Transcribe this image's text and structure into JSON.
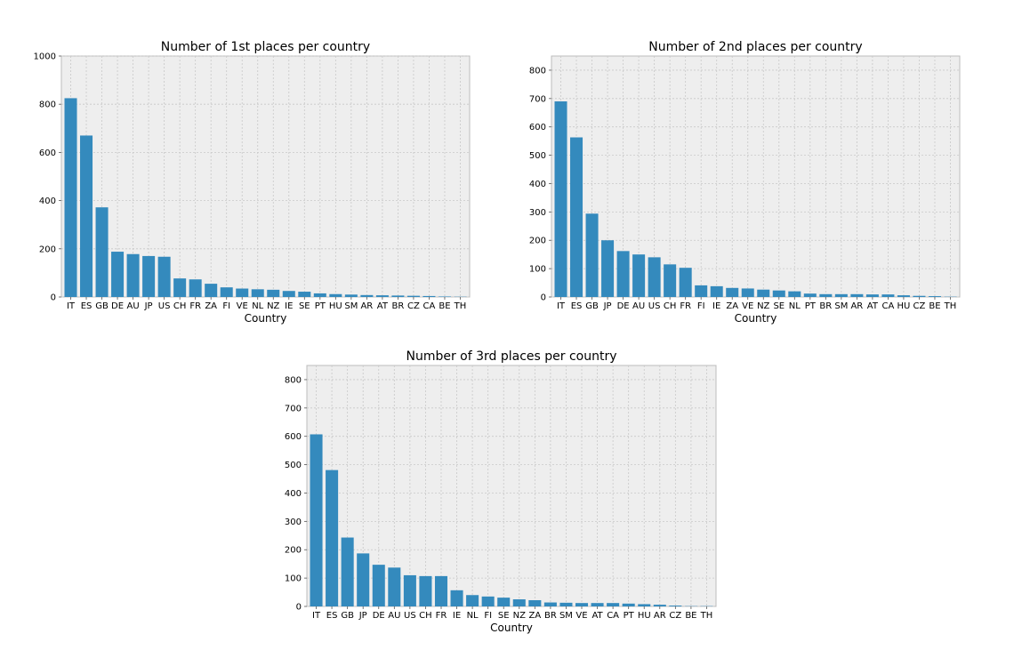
{
  "chart_data": [
    {
      "type": "bar",
      "title": "Number of 1st places per country",
      "xlabel": "Country",
      "ylabel": "",
      "ylim": [
        0,
        1000
      ],
      "yticks": [
        0,
        200,
        400,
        600,
        800,
        1000
      ],
      "grid": true,
      "categories": [
        "IT",
        "ES",
        "GB",
        "DE",
        "AU",
        "JP",
        "US",
        "CH",
        "FR",
        "ZA",
        "FI",
        "VE",
        "NL",
        "NZ",
        "IE",
        "SE",
        "PT",
        "HU",
        "SM",
        "AR",
        "AT",
        "BR",
        "CZ",
        "CA",
        "BE",
        "TH"
      ],
      "values": [
        825,
        670,
        372,
        188,
        178,
        170,
        167,
        77,
        73,
        55,
        40,
        35,
        32,
        30,
        25,
        22,
        15,
        12,
        10,
        8,
        7,
        6,
        5,
        4,
        2,
        1
      ],
      "color": "#348abd"
    },
    {
      "type": "bar",
      "title": "Number of 2nd places per country",
      "xlabel": "Country",
      "ylabel": "",
      "ylim": [
        0,
        850
      ],
      "yticks": [
        0,
        100,
        200,
        300,
        400,
        500,
        600,
        700,
        800
      ],
      "grid": true,
      "categories": [
        "IT",
        "ES",
        "GB",
        "JP",
        "DE",
        "AU",
        "US",
        "CH",
        "FR",
        "FI",
        "IE",
        "ZA",
        "VE",
        "NZ",
        "SE",
        "NL",
        "PT",
        "BR",
        "SM",
        "AR",
        "AT",
        "CA",
        "HU",
        "CZ",
        "BE",
        "TH"
      ],
      "values": [
        690,
        563,
        294,
        200,
        162,
        150,
        140,
        115,
        103,
        41,
        38,
        32,
        30,
        26,
        23,
        20,
        12,
        10,
        10,
        10,
        9,
        9,
        6,
        4,
        3,
        1
      ],
      "color": "#348abd"
    },
    {
      "type": "bar",
      "title": "Number of 3rd places per country",
      "xlabel": "Country",
      "ylabel": "",
      "ylim": [
        0,
        850
      ],
      "yticks": [
        0,
        100,
        200,
        300,
        400,
        500,
        600,
        700,
        800
      ],
      "grid": true,
      "categories": [
        "IT",
        "ES",
        "GB",
        "JP",
        "DE",
        "AU",
        "US",
        "CH",
        "FR",
        "IE",
        "NL",
        "FI",
        "SE",
        "NZ",
        "ZA",
        "BR",
        "SM",
        "VE",
        "AT",
        "CA",
        "PT",
        "HU",
        "AR",
        "CZ",
        "BE",
        "TH"
      ],
      "values": [
        607,
        481,
        243,
        187,
        147,
        137,
        110,
        107,
        107,
        57,
        40,
        35,
        31,
        25,
        22,
        14,
        13,
        12,
        12,
        12,
        10,
        8,
        6,
        3,
        1,
        1
      ],
      "color": "#348abd"
    }
  ]
}
